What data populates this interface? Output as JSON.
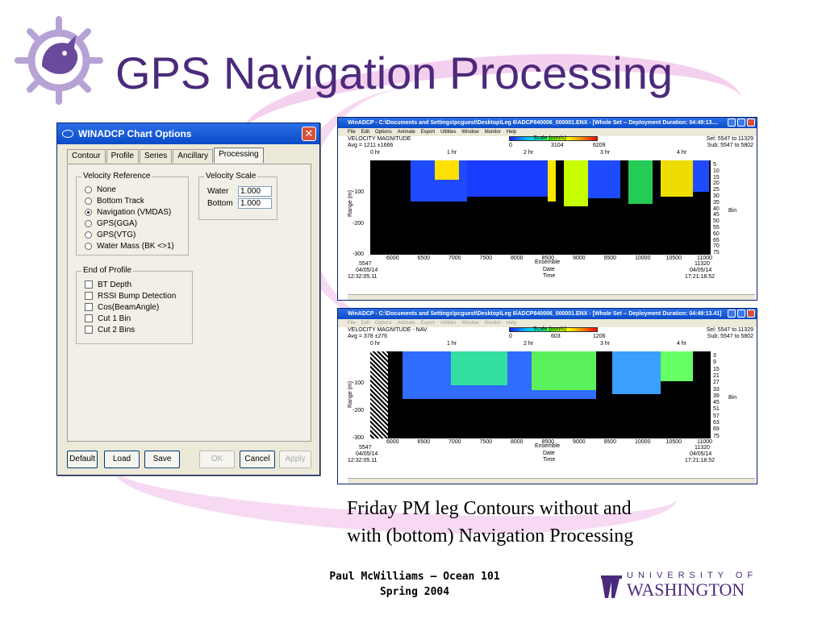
{
  "slide": {
    "title": "GPS Navigation Processing",
    "caption_line1": "Friday PM leg Contours without and",
    "caption_line2": "with (bottom) Navigation Processing",
    "footer_line1": "Paul McWilliams – Ocean  101",
    "footer_line2": "Spring 2004",
    "uw_top": "UNIVERSITY OF",
    "uw_bottom": "WASHINGTON",
    "accent_color": "#4b2a7b"
  },
  "dialog": {
    "title": "WINADCP Chart Options",
    "tabs": [
      "Contour",
      "Profile",
      "Series",
      "Ancillary",
      "Processing"
    ],
    "selected_tab": "Processing",
    "velocity_reference": {
      "label": "Velocity Reference",
      "options": [
        "None",
        "Bottom Track",
        "Navigation (VMDAS)",
        "GPS(GGA)",
        "GPS(VTG)",
        "Water Mass (BK <>1)"
      ],
      "selected": "Navigation (VMDAS)"
    },
    "velocity_scale": {
      "label": "Velocity Scale",
      "water_label": "Water",
      "water_value": "1.000",
      "bottom_label": "Bottom",
      "bottom_value": "1.000"
    },
    "end_of_profile": {
      "label": "End of Profile",
      "options": [
        "BT Depth",
        "RSSI Bump Detection",
        "Cos(BeamAngle)",
        "Cut 1 Bin",
        "Cut 2 Bins"
      ]
    },
    "buttons": [
      "Default",
      "Load",
      "Save",
      "OK",
      "Cancel",
      "Apply"
    ]
  },
  "top_window": {
    "title": "WinADCP - C:\\Documents and Settings\\pcguest\\Desktop\\Leg 6\\ADCP840006_000001.ENX - [Whole Set -- Deployment Duration: 04:49:13....",
    "menu": [
      "File",
      "Edit",
      "Options",
      "Animate",
      "Export",
      "Utilities",
      "Window",
      "Monitor",
      "Help"
    ],
    "heading": "VELOCITY MAGNITUDE",
    "avg": "Avg = 1211 ±1666",
    "scale_label": "Scale (mm/s)",
    "scale_ticks": [
      "0",
      "3104",
      "6209"
    ],
    "sel": "Sel: 5547 to 11329",
    "sub": "Sub: 5547 to 5802",
    "hours": [
      "0 hr",
      "1 hr",
      "2 hr",
      "3 hr",
      "4 hr"
    ],
    "y_ticks": [
      "-100",
      "-200",
      "-300"
    ],
    "y_label": "Range (m)",
    "bins": [
      "5",
      "10",
      "15",
      "20",
      "25",
      "30",
      "35",
      "40",
      "45",
      "50",
      "55",
      "60",
      "65",
      "70",
      "75"
    ],
    "bin_label": "Bin",
    "x_ticks": [
      "6000",
      "6500",
      "7000",
      "7500",
      "8000",
      "8500",
      "9000",
      "9500",
      "10000",
      "10500",
      "11000"
    ],
    "ens_start": "5547",
    "ens_end": "11320",
    "ens_label": "Ensemble",
    "date_start": "04/05/14",
    "date_end": "04/05/14",
    "date_label": "Date",
    "time_start": "12:32:05.11",
    "time_end": "17:21:18.52",
    "time_label": "Time"
  },
  "bottom_window": {
    "title": "WinADCP - C:\\Documents and Settings\\pcguest\\Desktop\\Leg 6\\ADCP840006_000001.ENX - [Whole Set -- Deployment Duration: 04:49:13.41]",
    "menu": [
      "File",
      "Edit",
      "Options",
      "Animate",
      "Export",
      "Utilities",
      "Window",
      "Monitor",
      "Help"
    ],
    "heading": "VELOCITY MAGNITUDE - NAV",
    "avg": "Avg = 378 ±276",
    "scale_label": "Scale (mm/s)",
    "scale_ticks": [
      "0",
      "603",
      "1206"
    ],
    "sel": "Sel: 5547 to 11329",
    "sub": "Sub: 5547 to 5802",
    "hours": [
      "0 hr",
      "1 hr",
      "2 hr",
      "3 hr",
      "4 hr"
    ],
    "y_ticks": [
      "-100",
      "-200",
      "-300"
    ],
    "y_label": "Range (m)",
    "bins": [
      "3",
      "9",
      "15",
      "21",
      "27",
      "33",
      "39",
      "45",
      "51",
      "57",
      "63",
      "69",
      "75"
    ],
    "bin_label": "Bin",
    "x_ticks": [
      "6000",
      "6500",
      "7000",
      "7500",
      "8000",
      "8500",
      "9000",
      "9500",
      "10000",
      "10500",
      "11000"
    ],
    "ens_start": "5547",
    "ens_end": "11320",
    "ens_label": "Ensemble",
    "date_start": "04/05/14",
    "date_end": "04/05/14",
    "date_label": "Date",
    "time_start": "12:32:05.11",
    "time_end": "17:21:18.52",
    "time_label": "Time"
  }
}
